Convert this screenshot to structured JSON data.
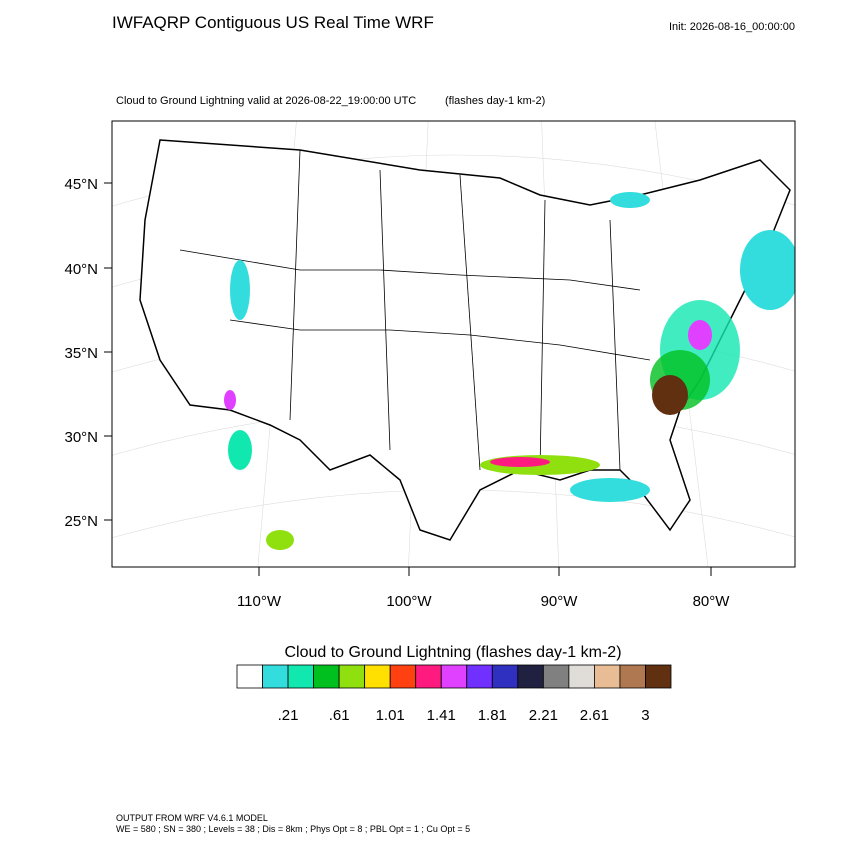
{
  "header": {
    "title": "IWFAQRP Contiguous US Real Time WRF",
    "init": "Init: 2026-08-16_00:00:00",
    "subtitle": "Cloud to Ground Lightning valid at 2026-08-22_19:00:00 UTC",
    "units": "(flashes day-1 km-2)"
  },
  "map": {
    "lat_labels": [
      "45°N",
      "40°N",
      "35°N",
      "30°N",
      "25°N"
    ],
    "lon_labels": [
      "110°W",
      "100°W",
      "90°W",
      "80°W"
    ]
  },
  "colorbar": {
    "title": "Cloud to Ground Lightning  (flashes day-1 km-2)",
    "colors": [
      "#ffffff",
      "#33dddd",
      "#11e8b0",
      "#00c020",
      "#90e010",
      "#ffe000",
      "#ff4010",
      "#ff1a80",
      "#e040ff",
      "#7030ff",
      "#3030c0",
      "#202040",
      "#808080",
      "#e0dcd8",
      "#e8bc94",
      "#b07850",
      "#603010"
    ],
    "labels": [
      ".21",
      ".61",
      "1.01",
      "1.41",
      "1.81",
      "2.21",
      "2.61",
      "3"
    ]
  },
  "footer": {
    "line1": "OUTPUT FROM WRF V4.6.1 MODEL",
    "line2": "WE = 580 ; SN = 380 ; Levels = 38 ; Dis = 8km ; Phys Opt = 8 ; PBL Opt = 1 ; Cu Opt = 5"
  }
}
